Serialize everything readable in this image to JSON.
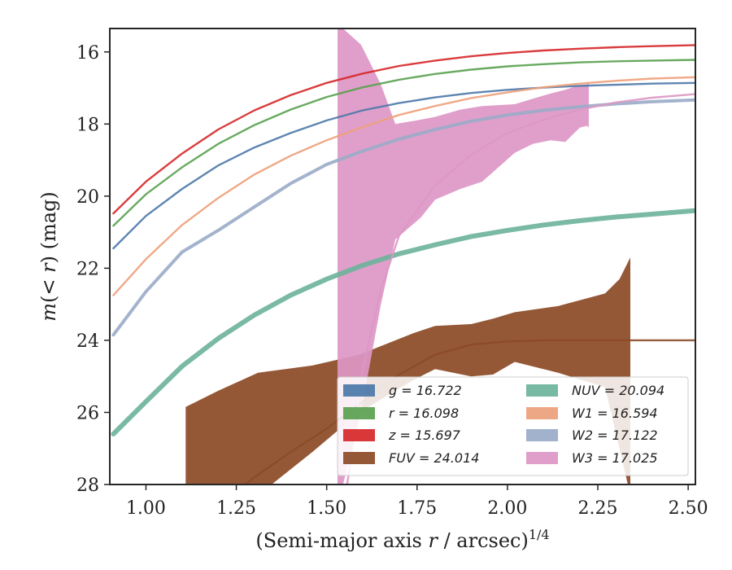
{
  "chart_data": {
    "type": "area",
    "xlabel": "(Semi-major axis r / arcsec)¹⁄⁴",
    "ylabel": "m(< r) (mag)",
    "xlim": [
      0.9,
      2.52
    ],
    "ylim": [
      28.0,
      15.35
    ],
    "y_inverted": true,
    "x_ticks": [
      "1.00",
      "1.25",
      "1.50",
      "1.75",
      "2.00",
      "2.25",
      "2.50"
    ],
    "x_tick_values": [
      1.0,
      1.25,
      1.5,
      1.75,
      2.0,
      2.25,
      2.5
    ],
    "y_ticks": [
      "16",
      "18",
      "20",
      "22",
      "24",
      "26",
      "28"
    ],
    "y_tick_values": [
      16,
      18,
      20,
      22,
      24,
      26,
      28
    ],
    "grid": false,
    "legend_position": "lower-right",
    "series": [
      {
        "key": "g",
        "name": "g = 16.722",
        "color": "#4c78a8",
        "width": 2.4,
        "sigma": 0.05,
        "x": [
          0.91,
          1.0,
          1.1,
          1.2,
          1.3,
          1.4,
          1.5,
          1.6,
          1.7,
          1.8,
          1.9,
          2.0,
          2.1,
          2.2,
          2.3,
          2.4,
          2.45,
          2.52
        ],
        "y": [
          21.45,
          20.55,
          19.8,
          19.15,
          18.65,
          18.25,
          17.9,
          17.62,
          17.42,
          17.26,
          17.14,
          17.05,
          16.99,
          16.94,
          16.91,
          16.88,
          16.87,
          16.86
        ]
      },
      {
        "key": "r",
        "name": "r = 16.098",
        "color": "#59a14f",
        "width": 2.4,
        "sigma": 0.05,
        "x": [
          0.91,
          1.0,
          1.1,
          1.2,
          1.3,
          1.4,
          1.5,
          1.6,
          1.7,
          1.8,
          1.9,
          2.0,
          2.1,
          2.2,
          2.3,
          2.4,
          2.52
        ],
        "y": [
          20.82,
          19.95,
          19.2,
          18.55,
          18.03,
          17.6,
          17.25,
          16.98,
          16.77,
          16.61,
          16.49,
          16.4,
          16.34,
          16.29,
          16.26,
          16.24,
          16.22
        ]
      },
      {
        "key": "z",
        "name": "z = 15.697",
        "color": "#d62728",
        "width": 2.4,
        "sigma": 0.05,
        "x": [
          0.91,
          1.0,
          1.1,
          1.2,
          1.3,
          1.4,
          1.5,
          1.6,
          1.7,
          1.8,
          1.9,
          2.0,
          2.1,
          2.2,
          2.3,
          2.4,
          2.52
        ],
        "y": [
          20.48,
          19.6,
          18.82,
          18.15,
          17.62,
          17.2,
          16.86,
          16.6,
          16.39,
          16.24,
          16.12,
          16.03,
          15.96,
          15.91,
          15.87,
          15.84,
          15.81
        ]
      },
      {
        "key": "FUV",
        "name": "FUV = 24.014",
        "color": "#8c4a26",
        "width": 2.4,
        "sigma": 0.05,
        "x": [
          1.1,
          1.2,
          1.3,
          1.4,
          1.5,
          1.6,
          1.7,
          1.8,
          1.9,
          2.0,
          2.1,
          2.2,
          2.3,
          2.4,
          2.52
        ],
        "y": [
          29.2,
          28.6,
          27.8,
          27.1,
          26.45,
          25.7,
          24.95,
          24.4,
          24.12,
          24.03,
          24.0,
          24.0,
          24.0,
          24.0,
          24.0
        ],
        "band_x": [
          1.11,
          1.2,
          1.31,
          1.46,
          1.59,
          1.74,
          1.8,
          1.9,
          1.96,
          2.02,
          2.14,
          2.27,
          2.31,
          2.34
        ],
        "band_lo": [
          25.85,
          25.4,
          24.9,
          24.7,
          24.4,
          23.8,
          23.6,
          23.55,
          23.4,
          23.22,
          23.05,
          22.7,
          22.3,
          21.7
        ],
        "band_hi": [
          28.5,
          28.5,
          28.3,
          27.1,
          26.0,
          25.1,
          24.8,
          25.0,
          24.95,
          24.6,
          24.9,
          25.3,
          27.0,
          28.3
        ]
      },
      {
        "key": "NUV",
        "name": "NUV = 20.094",
        "color": "#6bb39a",
        "width": 6.0,
        "sigma": 0.18,
        "x": [
          0.91,
          1.0,
          1.1,
          1.2,
          1.3,
          1.4,
          1.5,
          1.6,
          1.7,
          1.8,
          1.9,
          2.0,
          2.1,
          2.2,
          2.3,
          2.4,
          2.52
        ],
        "y": [
          26.6,
          25.7,
          24.72,
          23.95,
          23.3,
          22.75,
          22.3,
          21.92,
          21.6,
          21.35,
          21.12,
          20.95,
          20.8,
          20.68,
          20.58,
          20.5,
          20.4
        ]
      },
      {
        "key": "W1",
        "name": "W1 = 16.594",
        "color": "#eda07a",
        "width": 2.4,
        "sigma": 0.05,
        "x": [
          0.91,
          1.0,
          1.1,
          1.2,
          1.3,
          1.4,
          1.5,
          1.6,
          1.7,
          1.8,
          1.9,
          2.0,
          2.1,
          2.2,
          2.3,
          2.4,
          2.52
        ],
        "y": [
          22.75,
          21.75,
          20.8,
          20.05,
          19.4,
          18.88,
          18.45,
          18.08,
          17.75,
          17.5,
          17.28,
          17.12,
          16.98,
          16.88,
          16.8,
          16.74,
          16.7
        ]
      },
      {
        "key": "W2",
        "name": "W2 = 17.122",
        "color": "#9aabc8",
        "width": 4.0,
        "sigma": 0.08,
        "x": [
          0.91,
          1.0,
          1.1,
          1.2,
          1.3,
          1.4,
          1.5,
          1.6,
          1.7,
          1.8,
          1.9,
          2.0,
          2.1,
          2.2,
          2.3,
          2.4,
          2.52
        ],
        "y": [
          23.85,
          22.65,
          21.55,
          20.95,
          20.3,
          19.65,
          19.12,
          18.75,
          18.42,
          18.15,
          17.92,
          17.75,
          17.62,
          17.52,
          17.44,
          17.38,
          17.33
        ]
      },
      {
        "key": "W3",
        "name": "W3 = 17.025",
        "color": "#dd97c5",
        "width": 2.4,
        "sigma": 0.05,
        "x": [
          1.55,
          1.6,
          1.65,
          1.7,
          1.8,
          1.9,
          2.0,
          2.1,
          2.2,
          2.3,
          2.4,
          2.52
        ],
        "y": [
          28.5,
          24.8,
          22.6,
          21.1,
          19.7,
          18.85,
          18.25,
          17.88,
          17.6,
          17.4,
          17.27,
          17.17
        ],
        "band_x": [
          1.53,
          1.545,
          1.595,
          1.65,
          1.69,
          1.76,
          1.8,
          1.87,
          1.93,
          2.02,
          2.07,
          2.12,
          2.16,
          2.2,
          2.22,
          2.225
        ],
        "band_lo": [
          15.35,
          15.35,
          15.8,
          16.9,
          18.0,
          17.88,
          17.8,
          17.6,
          17.5,
          17.45,
          17.3,
          17.15,
          17.05,
          16.92,
          16.9,
          16.85
        ],
        "band_hi": [
          28.0,
          28.0,
          26.0,
          23.0,
          21.2,
          20.6,
          20.1,
          19.8,
          19.6,
          18.8,
          18.55,
          18.45,
          18.5,
          18.1,
          18.05,
          18.1
        ]
      }
    ],
    "legend": [
      {
        "key": "g",
        "label": "g = 16.722",
        "color": "#4c78a8",
        "column": 0,
        "row": 0
      },
      {
        "key": "r",
        "label": "r = 16.098",
        "color": "#59a14f",
        "column": 0,
        "row": 1
      },
      {
        "key": "z",
        "label": "z = 15.697",
        "color": "#d62728",
        "column": 0,
        "row": 2
      },
      {
        "key": "FUV",
        "label": "FUV = 24.014",
        "color": "#8c4a26",
        "column": 0,
        "row": 3
      },
      {
        "key": "NUV",
        "label": "NUV = 20.094",
        "color": "#6bb39a",
        "column": 1,
        "row": 0
      },
      {
        "key": "W1",
        "label": "W1 = 16.594",
        "color": "#eda07a",
        "column": 1,
        "row": 1
      },
      {
        "key": "W2",
        "label": "W2 = 17.122",
        "color": "#9aabc8",
        "column": 1,
        "row": 2
      },
      {
        "key": "W3",
        "label": "W3 = 17.025",
        "color": "#dd97c5",
        "column": 1,
        "row": 3
      }
    ]
  }
}
